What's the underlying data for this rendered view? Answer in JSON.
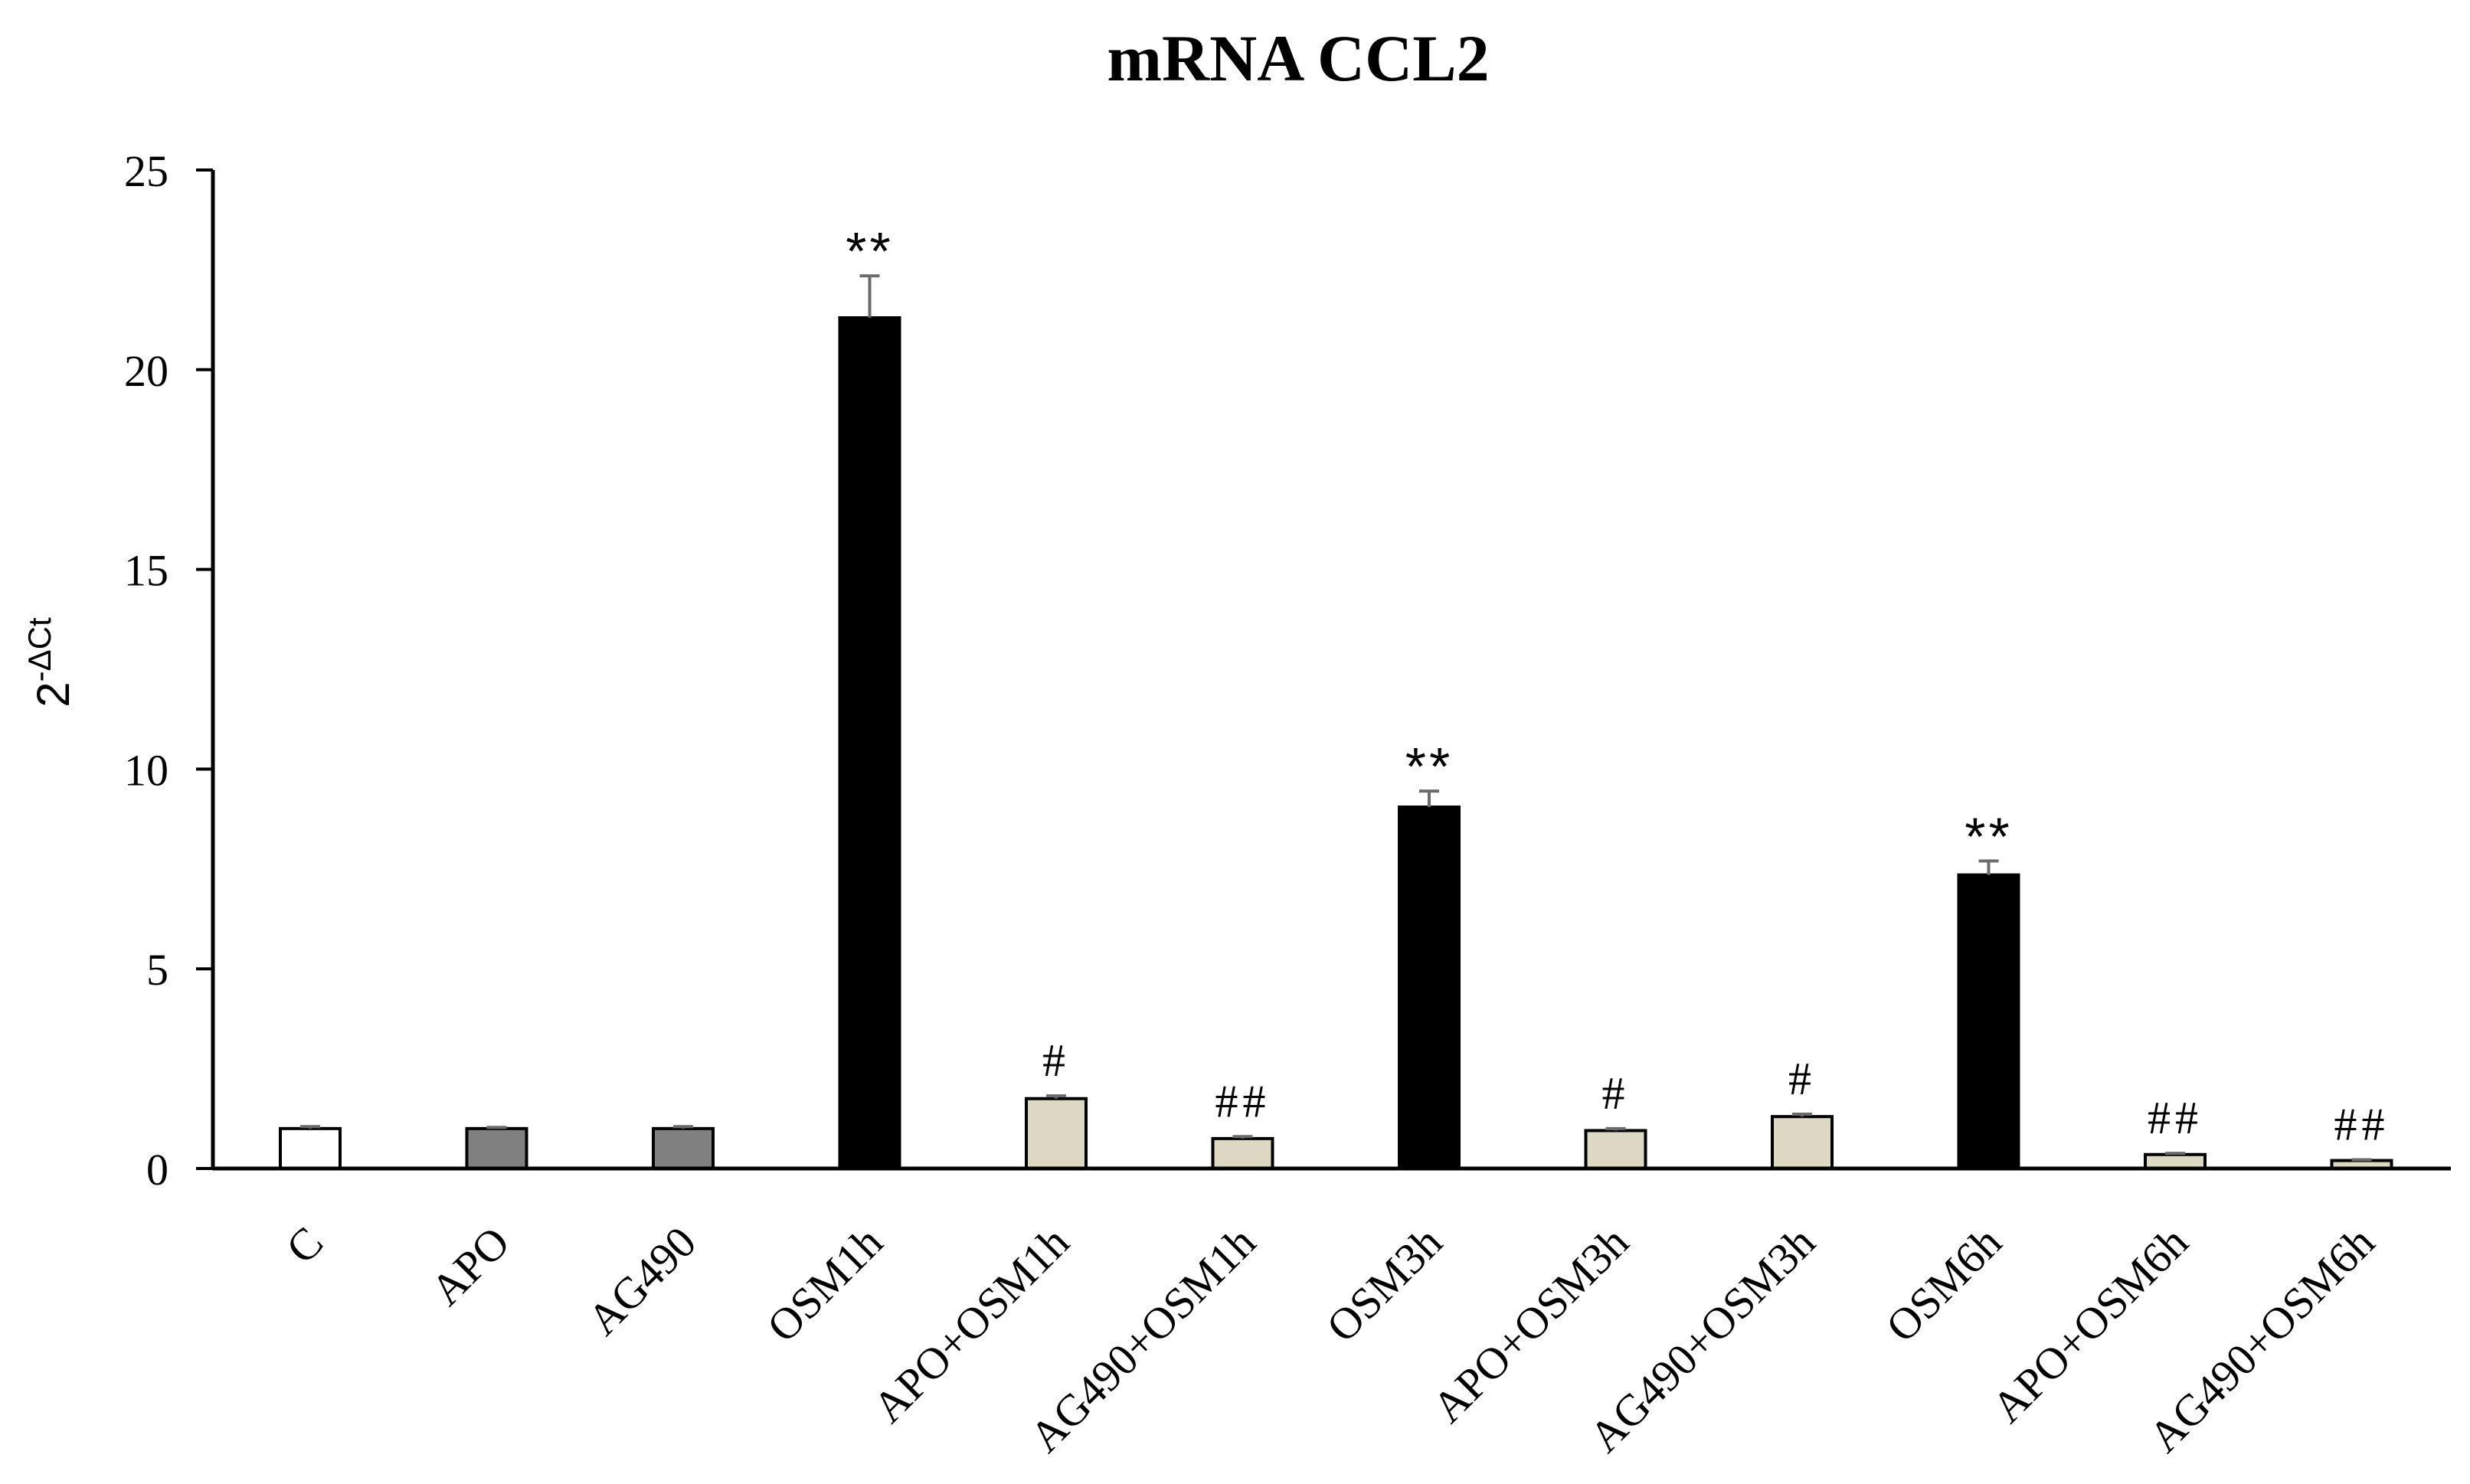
{
  "chart_data": {
    "type": "bar",
    "title": "mRNA CCL2",
    "ylabel_base": "2",
    "ylabel_sup": "-ΔCt",
    "xlabel": "",
    "ylim": [
      0,
      25
    ],
    "yticks": [
      0,
      5,
      10,
      15,
      20,
      25
    ],
    "grid": false,
    "categories": [
      "C",
      "APO",
      "AG490",
      "OSM1h",
      "APO+OSM1h",
      "AG490+OSM1h",
      "OSM3h",
      "APO+OSM3h",
      "AG490+OSM3h",
      "OSM6h",
      "APO+OSM6h",
      "AG490+OSM6h"
    ],
    "values": [
      1.0,
      1.0,
      1.0,
      21.3,
      1.75,
      0.75,
      9.05,
      0.95,
      1.3,
      7.35,
      0.35,
      0.2
    ],
    "errors": [
      0.05,
      0.03,
      0.05,
      1.05,
      0.07,
      0.05,
      0.4,
      0.05,
      0.06,
      0.35,
      0.03,
      0.02
    ],
    "annotations": [
      "",
      "",
      "",
      "**",
      "#",
      "##",
      "**",
      "#",
      "#",
      "**",
      "##",
      "##"
    ],
    "bar_colors": [
      "#ffffff",
      "#808080",
      "#808080",
      "#000000",
      "#ddd8c4",
      "#ddd8c4",
      "#000000",
      "#ddd8c4",
      "#ddd8c4",
      "#000000",
      "#ddd8c4",
      "#ddd8c4"
    ],
    "bar_stroke": "#000000",
    "error_color": "#6b6b6b"
  }
}
